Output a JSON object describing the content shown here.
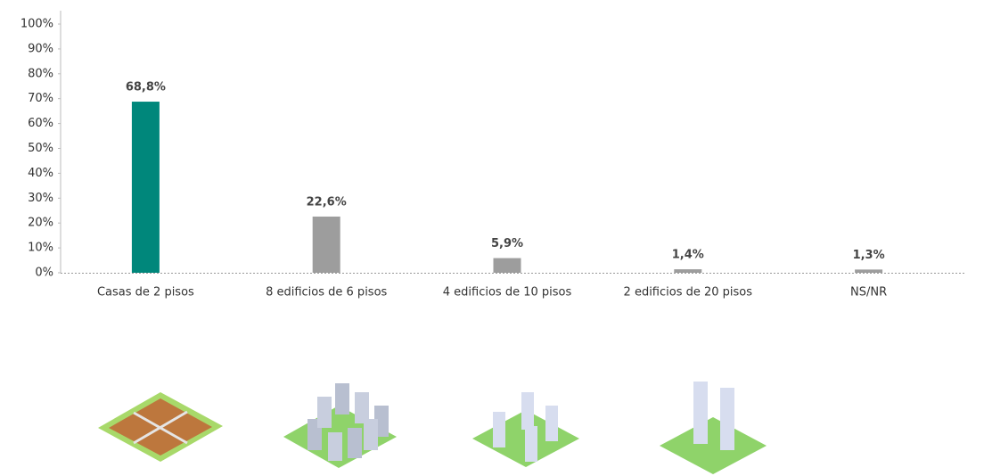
{
  "chart_data": {
    "type": "bar",
    "categories": [
      "Casas de 2 pisos",
      "8 edificios de 6 pisos",
      "4 edificios de 10 pisos",
      "2 edificios de 20 pisos",
      "NS/NR"
    ],
    "values": [
      68.8,
      22.6,
      5.9,
      1.4,
      1.3
    ],
    "value_labels": [
      "68,8%",
      "22,6%",
      "5,9%",
      "1,4%",
      "1,3%"
    ],
    "colors": [
      "#00877b",
      "#9d9d9d",
      "#9d9d9d",
      "#9d9d9d",
      "#9d9d9d"
    ],
    "ylim": [
      0,
      100
    ],
    "yticks": [
      {
        "value": 0,
        "label": "0%"
      },
      {
        "value": 10,
        "label": "10%"
      },
      {
        "value": 20,
        "label": "20%"
      },
      {
        "value": 30,
        "label": "30%"
      },
      {
        "value": 40,
        "label": "40%"
      },
      {
        "value": 50,
        "label": "50%"
      },
      {
        "value": 60,
        "label": "60%"
      },
      {
        "value": 70,
        "label": "70%"
      },
      {
        "value": 80,
        "label": "80%"
      },
      {
        "value": 90,
        "label": "90%"
      },
      {
        "value": 100,
        "label": "100%"
      }
    ]
  }
}
